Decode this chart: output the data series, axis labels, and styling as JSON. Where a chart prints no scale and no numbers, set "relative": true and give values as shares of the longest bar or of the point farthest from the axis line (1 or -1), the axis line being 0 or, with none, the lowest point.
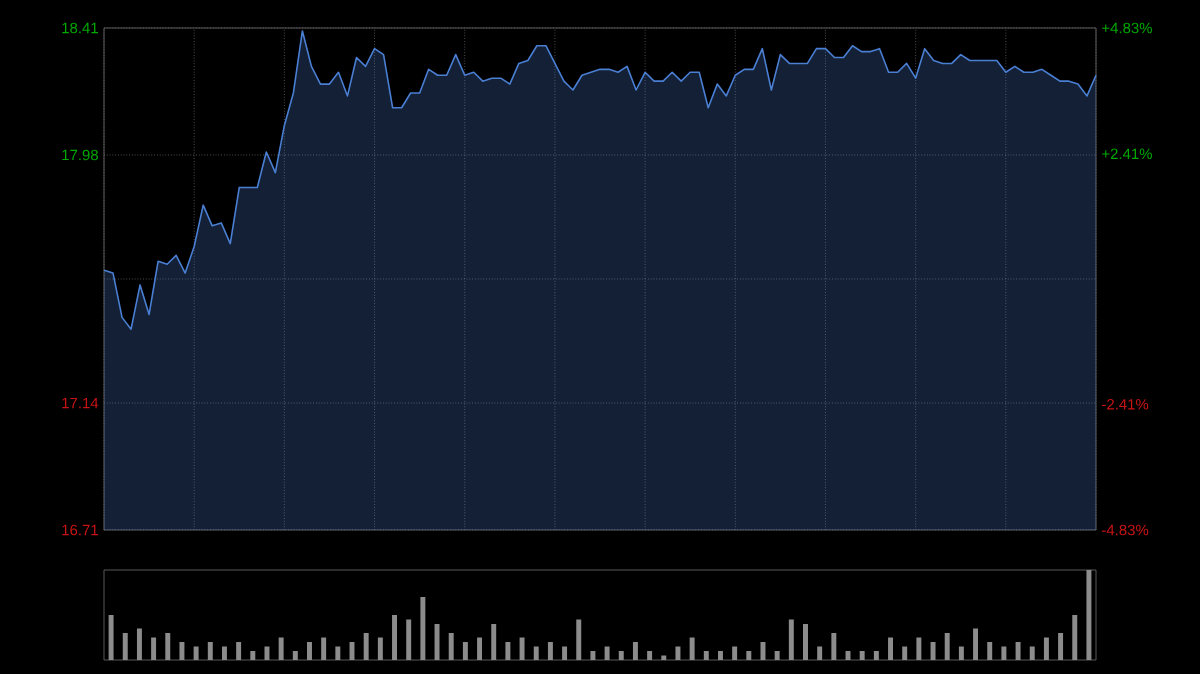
{
  "chart_data": [
    {
      "type": "area",
      "categories": [
        null,
        null,
        null,
        null,
        null,
        null,
        null,
        null,
        null,
        null,
        null,
        null,
        null,
        null,
        null,
        null,
        null,
        null,
        null,
        null,
        null,
        null,
        null,
        null,
        null,
        null,
        null,
        null,
        null,
        null,
        null,
        null,
        null,
        null,
        null,
        null,
        null,
        null,
        null,
        null,
        null,
        null,
        null,
        null,
        null,
        null,
        null,
        null,
        null,
        null,
        null,
        null,
        null,
        null,
        null,
        null,
        null,
        null,
        null,
        null,
        null,
        null,
        null,
        null,
        null,
        null,
        null,
        null,
        null,
        null,
        null,
        null,
        null,
        null,
        null,
        null,
        null,
        null,
        null,
        null,
        null,
        null,
        null,
        null,
        null,
        null,
        null,
        null,
        null,
        null,
        null,
        null,
        null,
        null,
        null,
        null,
        null,
        null,
        null,
        null,
        null,
        null,
        null,
        null,
        null,
        null,
        null,
        null,
        null,
        null,
        null
      ],
      "series": [
        {
          "color": "#4a7fd4",
          "values": [
            17.59,
            17.58,
            17.43,
            17.39,
            17.54,
            17.44,
            17.62,
            17.61,
            17.64,
            17.58,
            17.67,
            17.81,
            17.74,
            17.75,
            17.68,
            17.87,
            17.87,
            17.87,
            17.99,
            17.92,
            18.08,
            18.19,
            18.4,
            18.28,
            18.22,
            18.22,
            18.26,
            18.18,
            18.31,
            18.28,
            18.34,
            18.32,
            18.14,
            18.14,
            18.19,
            18.19,
            18.27,
            18.25,
            18.25,
            18.32,
            18.25,
            18.26,
            18.23,
            18.24,
            18.24,
            18.22,
            18.29,
            18.3,
            18.35,
            18.35,
            18.29,
            18.23,
            18.2,
            18.25,
            18.26,
            18.27,
            18.27,
            18.26,
            18.28,
            18.2,
            18.26,
            18.23,
            18.23,
            18.26,
            18.23,
            18.26,
            18.26,
            18.14,
            18.22,
            18.18,
            18.25,
            18.27,
            18.27,
            18.34,
            18.2,
            18.32,
            18.29,
            18.29,
            18.29,
            18.34,
            18.34,
            18.31,
            18.31,
            18.35,
            18.33,
            18.33,
            18.34,
            18.26,
            18.26,
            18.29,
            18.24,
            18.34,
            18.3,
            18.29,
            18.29,
            18.32,
            18.3,
            18.3,
            18.3,
            18.3,
            18.26,
            18.28,
            18.26,
            18.26,
            18.27,
            18.25,
            18.23,
            18.23,
            18.22,
            18.18,
            18.25
          ]
        }
      ],
      "ylim": [
        16.71,
        18.41
      ],
      "yticks": [
        18.41,
        17.98,
        {
          "value": 17.56,
          "label": null
        },
        17.14,
        16.71
      ],
      "y2lim": [
        -4.83,
        4.83
      ],
      "y2ticks": [
        {
          "value": 4.83,
          "label": "+4.83%"
        },
        {
          "value": 2.41,
          "label": "+2.41%"
        },
        {
          "value": 0,
          "label": null
        },
        {
          "value": -2.41,
          "label": "-2.41%"
        },
        {
          "value": -4.83,
          "label": "-4.83%"
        }
      ],
      "grid": true
    },
    {
      "type": "bar",
      "relative": true,
      "color": "#8c8c8c",
      "categories": [
        null,
        null,
        null,
        null,
        null,
        null,
        null,
        null,
        null,
        null,
        null,
        null,
        null,
        null,
        null,
        null,
        null,
        null,
        null,
        null,
        null,
        null,
        null,
        null,
        null,
        null,
        null,
        null,
        null,
        null,
        null,
        null,
        null,
        null,
        null,
        null,
        null,
        null,
        null,
        null,
        null,
        null,
        null,
        null,
        null,
        null,
        null,
        null,
        null,
        null,
        null,
        null,
        null,
        null,
        null,
        null,
        null,
        null,
        null,
        null,
        null,
        null,
        null,
        null,
        null,
        null,
        null,
        null,
        null,
        null
      ],
      "values": [
        0.5,
        0.3,
        0.35,
        0.25,
        0.3,
        0.2,
        0.15,
        0.2,
        0.15,
        0.2,
        0.1,
        0.15,
        0.25,
        0.1,
        0.2,
        0.25,
        0.15,
        0.2,
        0.3,
        0.25,
        0.5,
        0.45,
        0.7,
        0.4,
        0.3,
        0.2,
        0.25,
        0.4,
        0.2,
        0.25,
        0.15,
        0.2,
        0.15,
        0.45,
        0.1,
        0.15,
        0.1,
        0.2,
        0.1,
        0.05,
        0.15,
        0.25,
        0.1,
        0.1,
        0.15,
        0.1,
        0.2,
        0.1,
        0.45,
        0.4,
        0.15,
        0.3,
        0.1,
        0.1,
        0.1,
        0.25,
        0.15,
        0.25,
        0.2,
        0.3,
        0.15,
        0.35,
        0.2,
        0.15,
        0.2,
        0.15,
        0.25,
        0.3,
        0.5,
        1.0
      ]
    }
  ]
}
